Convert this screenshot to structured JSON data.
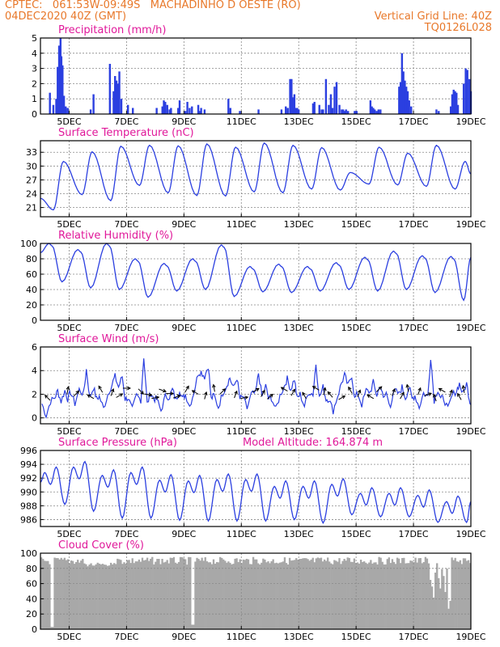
{
  "header": {
    "line1_left": "CPTEC:   061:53W-09:49S   MACHADINHO D OESTE (RO)",
    "line2_left": "04DEC2020 40Z (GMT)",
    "line2_right": "Vertical Grid Line: 40Z",
    "line3_right": "TQ0126L028"
  },
  "colors": {
    "header": "#e8782a",
    "panel_title": "#e0189a",
    "series": "#2b3fe0",
    "cloud": "#a8a8a8",
    "grid": "#888888"
  },
  "x_axis": {
    "start_day": 4,
    "end_day": 19,
    "tick_labels": [
      "5DEC",
      "7DEC",
      "9DEC",
      "11DEC",
      "13DEC",
      "15DEC",
      "17DEC",
      "19DEC"
    ],
    "tick_days": [
      5,
      7,
      9,
      11,
      13,
      15,
      17,
      19
    ]
  },
  "chart_data": [
    {
      "type": "bar",
      "title": "Precipitation (mm/h)",
      "ylim": [
        0,
        5
      ],
      "yticks": [
        "0",
        "1",
        "2",
        "3",
        "4",
        "5"
      ],
      "ytick_values": [
        0,
        1,
        2,
        3,
        4,
        5
      ],
      "x_days": [
        4.33,
        4.45,
        4.55,
        4.6,
        4.65,
        4.7,
        4.73,
        4.77,
        4.82,
        4.88,
        4.95,
        5.75,
        5.85,
        6.42,
        6.55,
        6.6,
        6.65,
        6.7,
        6.75,
        6.82,
        7.05,
        7.22,
        8.05,
        8.25,
        8.3,
        8.35,
        8.42,
        8.5,
        8.55,
        8.8,
        8.85,
        9.05,
        9.12,
        9.2,
        9.28,
        9.5,
        9.55,
        9.6,
        9.72,
        10.55,
        10.62,
        10.95,
        11.6,
        12.4,
        12.55,
        12.62,
        12.7,
        12.75,
        12.8,
        12.85,
        12.9,
        12.95,
        13.0,
        13.5,
        13.55,
        13.72,
        13.8,
        13.85,
        13.95,
        14.05,
        14.12,
        14.18,
        14.25,
        14.32,
        14.42,
        14.5,
        14.55,
        14.6,
        14.65,
        14.72,
        14.95,
        15.02,
        15.5,
        15.55,
        15.6,
        15.65,
        15.72,
        15.78,
        15.85,
        16.5,
        16.55,
        16.6,
        16.65,
        16.7,
        16.75,
        16.8,
        16.85,
        16.92,
        17.8,
        17.88,
        18.3,
        18.35,
        18.4,
        18.45,
        18.5,
        18.55,
        18.75,
        18.82,
        18.88,
        18.95,
        19.0
      ],
      "values": [
        1.4,
        0.6,
        1.0,
        3.1,
        4.5,
        5.0,
        3.8,
        3.2,
        1.2,
        0.5,
        0.4,
        0.3,
        1.3,
        3.3,
        1.5,
        2.5,
        2.2,
        2.0,
        2.8,
        1.0,
        0.6,
        0.4,
        0.4,
        0.5,
        0.9,
        0.8,
        0.6,
        0.3,
        0.4,
        0.4,
        0.9,
        0.2,
        0.8,
        0.4,
        0.5,
        0.6,
        0.2,
        0.4,
        0.3,
        1.0,
        0.4,
        0.2,
        0.3,
        0.3,
        0.5,
        0.4,
        2.3,
        2.3,
        1.1,
        1.3,
        0.4,
        0.4,
        0.3,
        0.7,
        0.8,
        0.6,
        0.3,
        0.3,
        2.3,
        0.6,
        1.3,
        0.4,
        1.8,
        2.1,
        0.6,
        0.3,
        0.3,
        0.2,
        0.3,
        0.2,
        0.2,
        0.2,
        0.9,
        0.5,
        0.4,
        0.3,
        0.2,
        0.3,
        0.3,
        1.8,
        2.1,
        4.0,
        2.8,
        2.2,
        1.8,
        1.5,
        0.9,
        0.5,
        0.3,
        0.2,
        0.5,
        1.3,
        1.6,
        1.5,
        1.4,
        0.6,
        2.0,
        3.0,
        2.9,
        2.3,
        1.5
      ]
    },
    {
      "type": "line",
      "title": "Surface Temperature (nC)",
      "ylim": [
        19,
        35.5
      ],
      "yticks": [
        "21",
        "24",
        "27",
        "30",
        "33"
      ],
      "ytick_values": [
        21,
        24,
        27,
        30,
        33
      ],
      "min_values": [
        20.5,
        23.8,
        22.5,
        25.8,
        24.2,
        23.6,
        23.5,
        24.4,
        24.2,
        25.0,
        24.8,
        26.1,
        25.9,
        25.6,
        25.0
      ],
      "max_values": [
        31.0,
        33.1,
        34.3,
        34.5,
        34.4,
        34.8,
        34.1,
        35.0,
        34.5,
        34.0,
        28.6,
        34.1,
        32.8,
        34.5,
        31.0
      ],
      "end_value": 28.3
    },
    {
      "type": "line",
      "title": "Relative Humidity (%)",
      "ylim": [
        0,
        100
      ],
      "yticks": [
        "0",
        "20",
        "40",
        "60",
        "80",
        "100"
      ],
      "ytick_values": [
        0,
        20,
        40,
        60,
        80,
        100
      ],
      "max_values": [
        100,
        92,
        100,
        80,
        74,
        80,
        98,
        70,
        73,
        70,
        75,
        82,
        90,
        84,
        83
      ],
      "min_values": [
        50,
        42,
        40,
        30,
        38,
        40,
        31,
        37,
        36,
        38,
        40,
        38,
        40,
        36,
        26
      ],
      "start_value": 88,
      "end_value": 82
    },
    {
      "type": "line",
      "title": "Surface Wind (m/s)",
      "ylim": [
        -0.5,
        6
      ],
      "yticks": [
        "0",
        "2",
        "4",
        "6"
      ],
      "ytick_values": [
        0,
        2,
        4,
        6
      ],
      "day_values": [
        2.3,
        2.6,
        3.5,
        2.1,
        2.4,
        4.4,
        3.4,
        2.7,
        3.3,
        2.6,
        3.6,
        2.8,
        2.6,
        2.4,
        2.9
      ],
      "night_values": [
        0.2,
        1.2,
        0.8,
        0.7,
        0.6,
        1.0,
        0.9,
        0.8,
        0.7,
        1.0,
        0.6,
        1.1,
        1.1,
        0.9,
        0.7
      ],
      "spike_values": [
        4.1,
        5.2,
        3.9,
        3.8,
        4.6,
        3.0,
        5.2
      ],
      "arrow_days": [
        4.25,
        4.95,
        5.25,
        5.75,
        6.1,
        6.5,
        6.75,
        7.0,
        7.5,
        7.75,
        8.0,
        8.25,
        8.5,
        8.75,
        9.1,
        9.4,
        9.75,
        10.05,
        10.35,
        10.8,
        11.1,
        11.5,
        11.75,
        12.0,
        12.5,
        12.8,
        13.2,
        13.6,
        13.9,
        14.1,
        14.5,
        14.8,
        15.1,
        15.5,
        15.8,
        16.3,
        16.6,
        16.8,
        17.2,
        17.5,
        17.75,
        18.0,
        18.3,
        18.6,
        18.75
      ],
      "arrow_directions_deg": [
        315,
        10,
        45,
        300,
        330,
        20,
        60,
        90,
        135,
        100,
        80,
        110,
        90,
        70,
        30,
        300,
        15,
        350,
        45,
        20,
        80,
        60,
        30,
        50,
        300,
        30,
        330,
        300,
        10,
        320,
        60,
        330,
        20,
        300,
        45,
        20,
        30,
        350,
        20,
        70,
        340,
        300,
        20,
        330,
        350
      ]
    },
    {
      "type": "line",
      "title": "Surface Pressure (hPa)",
      "subtitle": "Model Altitude: 164.874 m",
      "ylim": [
        985,
        996
      ],
      "yticks": [
        "986",
        "988",
        "990",
        "992",
        "994",
        "996"
      ],
      "ytick_values": [
        986,
        988,
        990,
        992,
        994,
        996
      ],
      "primary_max": [
        993.6,
        994.4,
        993.2,
        993.6,
        992.5,
        992.4,
        992.6,
        992.6,
        991.6,
        991.6,
        991.9,
        990.6,
        990.6,
        990.3,
        989.4
      ],
      "primary_min": [
        988.2,
        987.2,
        986.2,
        986.2,
        985.9,
        985.8,
        985.8,
        985.8,
        986.0,
        985.5,
        986.7,
        986.4,
        986.4,
        985.6,
        985.6
      ],
      "start_value": 991.4,
      "end_value": 988.6
    },
    {
      "type": "bar",
      "title": "Cloud Cover (%)",
      "ylim": [
        0,
        100
      ],
      "yticks": [
        "0",
        "20",
        "40",
        "60",
        "80",
        "100"
      ],
      "ytick_values": [
        0,
        20,
        40,
        60,
        80,
        100
      ],
      "base_value": 95
    }
  ]
}
